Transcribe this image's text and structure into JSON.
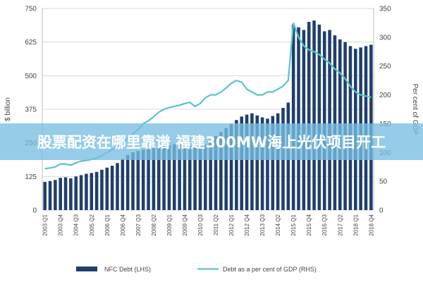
{
  "banner": {
    "text": "股票配资在哪里靠谱 福建300MW海上光伏项目开工"
  },
  "colors": {
    "bars": "#1f3f6b",
    "line": "#5cc3c9",
    "banner": "#78bee1"
  },
  "chart_data": {
    "type": "bar",
    "title": "",
    "xlabel": "",
    "ylabel": "$ billion",
    "y2label": "Per cent of GDP",
    "ylim": [
      0,
      750
    ],
    "y2lim": [
      0,
      350
    ],
    "yticks": [
      "0",
      "125",
      "250",
      "375",
      "500",
      "625",
      "750"
    ],
    "y2ticks": [
      "0",
      "50",
      "100",
      "150",
      "200",
      "250",
      "300",
      "350"
    ],
    "xtick_labels": [
      "2003 Q1",
      "2003 Q4",
      "2004 Q3",
      "2005 Q2",
      "2006 Q1",
      "2006 Q4",
      "2007 Q3",
      "2008 Q2",
      "2009 Q1",
      "2009 Q4",
      "2010 Q3",
      "2011 Q2",
      "2012 Q1",
      "2012 Q4",
      "2013 Q3",
      "2014 Q2",
      "2015 Q1",
      "2015 Q4",
      "2016 Q3",
      "2017 Q2",
      "2018 Q1",
      "2018 Q4"
    ],
    "grid": true,
    "legend_position": "bottom",
    "categories": [
      "2003 Q1",
      "2003 Q2",
      "2003 Q3",
      "2003 Q4",
      "2004 Q1",
      "2004 Q2",
      "2004 Q3",
      "2004 Q4",
      "2005 Q1",
      "2005 Q2",
      "2005 Q3",
      "2005 Q4",
      "2006 Q1",
      "2006 Q2",
      "2006 Q3",
      "2006 Q4",
      "2007 Q1",
      "2007 Q2",
      "2007 Q3",
      "2007 Q4",
      "2008 Q1",
      "2008 Q2",
      "2008 Q3",
      "2008 Q4",
      "2009 Q1",
      "2009 Q2",
      "2009 Q3",
      "2009 Q4",
      "2010 Q1",
      "2010 Q2",
      "2010 Q3",
      "2010 Q4",
      "2011 Q1",
      "2011 Q2",
      "2011 Q3",
      "2011 Q4",
      "2012 Q1",
      "2012 Q2",
      "2012 Q3",
      "2012 Q4",
      "2013 Q1",
      "2013 Q2",
      "2013 Q3",
      "2013 Q4",
      "2014 Q1",
      "2014 Q2",
      "2014 Q3",
      "2014 Q4",
      "2015 Q1",
      "2015 Q2",
      "2015 Q3",
      "2015 Q4",
      "2016 Q1",
      "2016 Q2",
      "2016 Q3",
      "2016 Q4",
      "2017 Q1",
      "2017 Q2",
      "2017 Q3",
      "2017 Q4",
      "2018 Q1",
      "2018 Q2",
      "2018 Q3",
      "2018 Q4"
    ],
    "series": [
      {
        "name": "NFC Debt (LHS)",
        "type": "bar",
        "axis": "left",
        "values": [
          105,
          108,
          112,
          120,
          122,
          118,
          125,
          130,
          135,
          138,
          142,
          150,
          158,
          165,
          175,
          190,
          205,
          215,
          220,
          225,
          228,
          232,
          235,
          238,
          240,
          245,
          243,
          240,
          238,
          236,
          238,
          245,
          260,
          275,
          290,
          305,
          320,
          335,
          348,
          355,
          360,
          352,
          345,
          340,
          350,
          360,
          380,
          400,
          690,
          680,
          670,
          700,
          705,
          690,
          665,
          670,
          650,
          635,
          625,
          610,
          600,
          605,
          610,
          615
        ]
      },
      {
        "name": "Debt as a per cent of GDP (RHS)",
        "type": "line",
        "axis": "right",
        "values": [
          72,
          73,
          75,
          80,
          80,
          78,
          82,
          85,
          86,
          88,
          90,
          95,
          100,
          105,
          110,
          115,
          125,
          132,
          140,
          150,
          155,
          162,
          170,
          175,
          178,
          180,
          182,
          185,
          187,
          180,
          185,
          195,
          200,
          200,
          205,
          212,
          220,
          225,
          222,
          210,
          205,
          200,
          200,
          205,
          205,
          210,
          215,
          225,
          325,
          300,
          285,
          278,
          275,
          270,
          262,
          255,
          245,
          238,
          228,
          215,
          205,
          200,
          198,
          196
        ]
      }
    ]
  }
}
